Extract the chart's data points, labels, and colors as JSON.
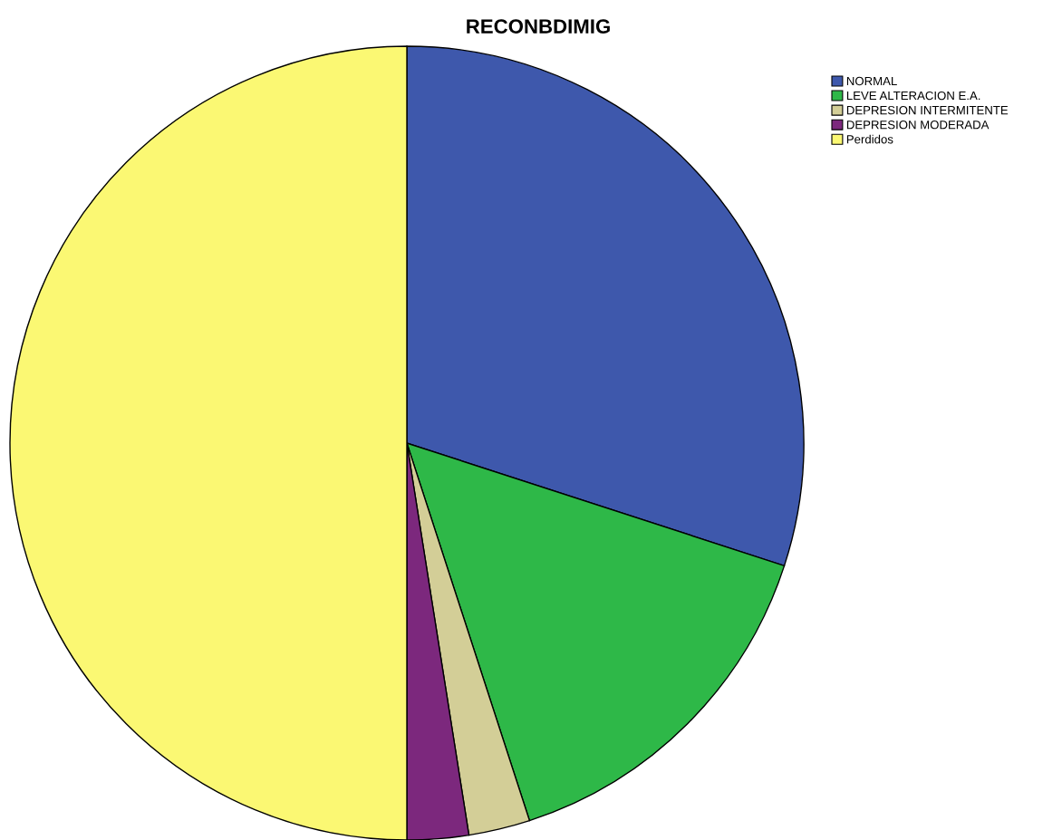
{
  "chart_data": {
    "type": "pie",
    "title": "RECONBDIMIG",
    "categories": [
      "NORMAL",
      "LEVE ALTERACION E.A.",
      "DEPRESION INTERMITENTE",
      "DEPRESION MODERADA",
      "Perdidos"
    ],
    "values": [
      30,
      15,
      2.5,
      2.5,
      50
    ],
    "colors": [
      "#3e58ac",
      "#2eb848",
      "#d3ce97",
      "#7c287d",
      "#fbf873"
    ],
    "legend": "top right"
  }
}
